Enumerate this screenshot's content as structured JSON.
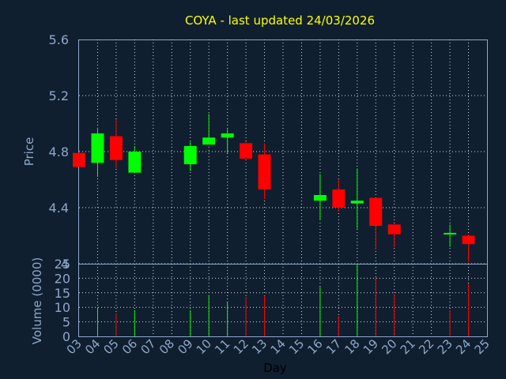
{
  "chart_data": [
    {
      "type": "candlestick",
      "title": "COYA - last updated 24/03/2026",
      "xlabel": "",
      "ylabel": "Price",
      "ylim": [
        4.0,
        5.6
      ],
      "yticks": [
        "5.6",
        "5.2",
        "4.8",
        "4.4",
        "4"
      ],
      "grid": true,
      "colors": {
        "up": "#00ff00",
        "down": "#ff0000",
        "title": "#ffff00",
        "axis_text": "#8fa7c9",
        "grid": "#d8d8d8",
        "background": "#0f1f2f"
      },
      "candles": [
        {
          "day": "03",
          "open": 4.79,
          "high": 4.8,
          "low": 4.69,
          "close": 4.69
        },
        {
          "day": "04",
          "open": 4.72,
          "high": 4.97,
          "low": 4.62,
          "close": 4.93
        },
        {
          "day": "05",
          "open": 4.91,
          "high": 5.03,
          "low": 4.68,
          "close": 4.74
        },
        {
          "day": "06",
          "open": 4.65,
          "high": 4.84,
          "low": 4.65,
          "close": 4.8
        },
        {
          "day": "09",
          "open": 4.71,
          "high": 4.87,
          "low": 4.66,
          "close": 4.84
        },
        {
          "day": "10",
          "open": 4.85,
          "high": 5.07,
          "low": 4.85,
          "close": 4.9
        },
        {
          "day": "11",
          "open": 4.9,
          "high": 4.96,
          "low": 4.79,
          "close": 4.93
        },
        {
          "day": "12",
          "open": 4.86,
          "high": 4.87,
          "low": 4.75,
          "close": 4.75
        },
        {
          "day": "13",
          "open": 4.78,
          "high": 4.86,
          "low": 4.46,
          "close": 4.53
        },
        {
          "day": "16",
          "open": 4.45,
          "high": 4.64,
          "low": 4.31,
          "close": 4.49
        },
        {
          "day": "17",
          "open": 4.53,
          "high": 4.6,
          "low": 4.37,
          "close": 4.4
        },
        {
          "day": "18",
          "open": 4.43,
          "high": 4.68,
          "low": 4.25,
          "close": 4.45
        },
        {
          "day": "19",
          "open": 4.47,
          "high": 4.47,
          "low": 4.1,
          "close": 4.27
        },
        {
          "day": "20",
          "open": 4.28,
          "high": 4.28,
          "low": 4.12,
          "close": 4.21
        },
        {
          "day": "23",
          "open": 4.22,
          "high": 4.28,
          "low": 4.12,
          "close": 4.22
        },
        {
          "day": "24",
          "open": 4.2,
          "high": 4.21,
          "low": 4.01,
          "close": 4.14
        }
      ]
    },
    {
      "type": "bar",
      "title": "",
      "xlabel": "Day",
      "ylabel": "Volume (0000)",
      "ylim": [
        0,
        25
      ],
      "yticks": [
        "25",
        "20",
        "15",
        "10",
        "5",
        "0"
      ],
      "grid": true,
      "categories": [
        "03",
        "04",
        "05",
        "06",
        "07",
        "08",
        "09",
        "10",
        "11",
        "12",
        "13",
        "14",
        "15",
        "16",
        "17",
        "18",
        "19",
        "20",
        "21",
        "22",
        "23",
        "24",
        "25"
      ],
      "volumes": [
        {
          "day": "04",
          "value": 10,
          "direction": "up"
        },
        {
          "day": "05",
          "value": 8,
          "direction": "down"
        },
        {
          "day": "06",
          "value": 9,
          "direction": "up"
        },
        {
          "day": "09",
          "value": 9,
          "direction": "up"
        },
        {
          "day": "10",
          "value": 14,
          "direction": "up"
        },
        {
          "day": "11",
          "value": 12,
          "direction": "up"
        },
        {
          "day": "12",
          "value": 13.5,
          "direction": "down"
        },
        {
          "day": "13",
          "value": 14,
          "direction": "down"
        },
        {
          "day": "16",
          "value": 17,
          "direction": "up"
        },
        {
          "day": "17",
          "value": 7,
          "direction": "down"
        },
        {
          "day": "18",
          "value": 25,
          "direction": "up"
        },
        {
          "day": "19",
          "value": 20.5,
          "direction": "down"
        },
        {
          "day": "20",
          "value": 14.5,
          "direction": "down"
        },
        {
          "day": "23",
          "value": 9,
          "direction": "down"
        },
        {
          "day": "24",
          "value": 18,
          "direction": "down"
        }
      ]
    }
  ]
}
